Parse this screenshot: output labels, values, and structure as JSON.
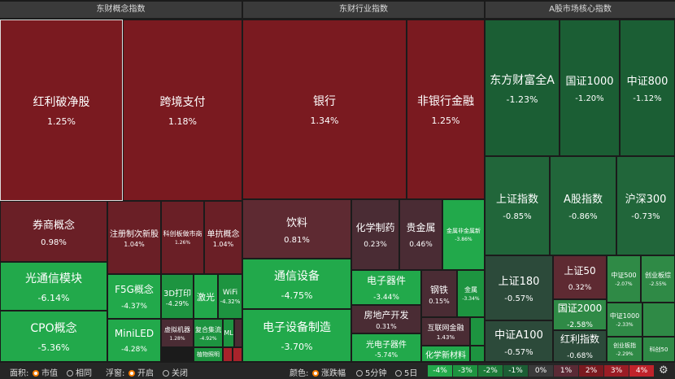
{
  "panels": [
    {
      "title": "东财概念指数",
      "tiles": [
        {
          "name": "红利破净股",
          "change": "1.25%"
        },
        {
          "name": "跨境支付",
          "change": "1.18%"
        },
        {
          "name": "券商概念",
          "change": "0.98%"
        },
        {
          "name": "注册制次新股",
          "change": "1.04%"
        },
        {
          "name": "科创板做市商",
          "change": "1.26%"
        },
        {
          "name": "单抗概念",
          "change": "1.04%"
        },
        {
          "name": "光通信模块",
          "change": "-6.14%"
        },
        {
          "name": "CPO概念",
          "change": "-5.36%"
        },
        {
          "name": "F5G概念",
          "change": "-4.37%"
        },
        {
          "name": "MiniLED",
          "change": "-4.28%"
        },
        {
          "name": "3D打印",
          "change": "-4.29%"
        },
        {
          "name": "激光"
        },
        {
          "name": "WiFi",
          "change": "-4.32%"
        },
        {
          "name": "虚拟机器",
          "change": "1.28%"
        },
        {
          "name": "复合集流",
          "change": "-4.92%"
        },
        {
          "name": "ML"
        },
        {
          "name": "植物照明"
        }
      ]
    },
    {
      "title": "东财行业指数",
      "tiles": [
        {
          "name": "银行",
          "change": "1.34%"
        },
        {
          "name": "非银行金融",
          "change": "1.25%"
        },
        {
          "name": "饮料",
          "change": "0.81%"
        },
        {
          "name": "通信设备",
          "change": "-4.75%"
        },
        {
          "name": "电子设备制造",
          "change": "-3.70%"
        },
        {
          "name": "化学制药",
          "change": "0.23%"
        },
        {
          "name": "贵金属",
          "change": "0.46%"
        },
        {
          "name": "金属非金属新",
          "change": "-3.86%"
        },
        {
          "name": "电子器件",
          "change": "-3.44%"
        },
        {
          "name": "房地产开发",
          "change": "0.31%"
        },
        {
          "name": "光电子器件",
          "change": "-5.74%"
        },
        {
          "name": "钢铁",
          "change": "0.15%"
        },
        {
          "name": "金属",
          "change": "-3.34%"
        },
        {
          "name": "互联网金融",
          "change": "1.43%"
        },
        {
          "name": "化学新材料"
        }
      ]
    },
    {
      "title": "A股市场核心指数",
      "tiles": [
        {
          "name": "东方财富全A",
          "change": "-1.23%"
        },
        {
          "name": "国证1000",
          "change": "-1.20%"
        },
        {
          "name": "中证800",
          "change": "-1.12%"
        },
        {
          "name": "上证指数",
          "change": "-0.85%"
        },
        {
          "name": "A股指数",
          "change": "-0.86%"
        },
        {
          "name": "沪深300",
          "change": "-0.73%"
        },
        {
          "name": "上证180",
          "change": "-0.57%"
        },
        {
          "name": "中证A100",
          "change": "-0.57%"
        },
        {
          "name": "上证50",
          "change": "0.32%"
        },
        {
          "name": "国证2000",
          "change": "-2.58%"
        },
        {
          "name": "红利指数",
          "change": "-0.68%"
        },
        {
          "name": "中证500",
          "change": "-2.07%"
        },
        {
          "name": "创业板综",
          "change": "-2.55%"
        },
        {
          "name": "中证1000",
          "change": "-2.33%"
        },
        {
          "name": "创业板指",
          "change": "-2.29%"
        },
        {
          "name": "科创50"
        }
      ]
    }
  ],
  "controls": {
    "area": {
      "label": "面积:",
      "options": [
        "市值",
        "相同"
      ]
    },
    "popup": {
      "label": "浮窗:",
      "options": [
        "开启",
        "关闭"
      ]
    },
    "color": {
      "label": "颜色:",
      "options": [
        "涨跌幅",
        "5分钟",
        "5日"
      ]
    },
    "legend": [
      "-4%",
      "-3%",
      "-2%",
      "-1%",
      "0%",
      "1%",
      "2%",
      "3%",
      "4%"
    ]
  }
}
